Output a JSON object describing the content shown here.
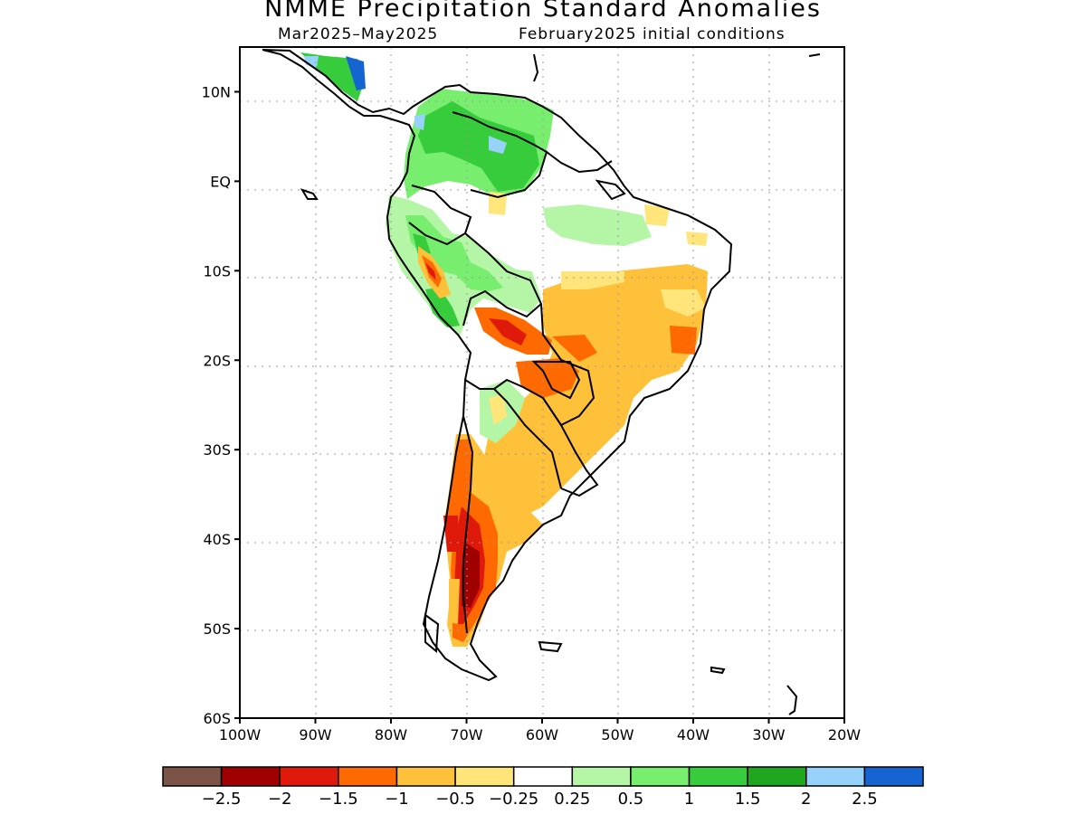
{
  "title": "NMME Precipitation Standard Anomalies",
  "subtitle_left": "Mar2025–May2025",
  "subtitle_right": "February2025 initial conditions",
  "axes": {
    "lon_labels": [
      "100W",
      "90W",
      "80W",
      "70W",
      "60W",
      "50W",
      "40W",
      "30W",
      "20W"
    ],
    "lat_labels": [
      "10N",
      "EQ",
      "10S",
      "20S",
      "30S",
      "40S",
      "50S",
      "60S"
    ],
    "lon_values": [
      -100,
      -90,
      -80,
      -70,
      -60,
      -50,
      -40,
      -30,
      -20
    ],
    "lat_values": [
      10,
      0,
      -10,
      -20,
      -30,
      -40,
      -50,
      -60
    ],
    "lon_range": [
      -100,
      -20
    ],
    "lat_range": [
      -60,
      15
    ]
  },
  "colorbar": {
    "colors": [
      "#7b5347",
      "#a10000",
      "#e01a0b",
      "#ff6a00",
      "#ffc03a",
      "#ffe57a",
      "#ffffff",
      "#b4f5a6",
      "#78ee6e",
      "#37cc3c",
      "#1ea61e",
      "#96d2fa",
      "#1464d2"
    ],
    "labels": [
      "−2.5",
      "−2",
      "−1.5",
      "−1",
      "−0.5",
      "−0.25",
      "0.25",
      "0.5",
      "1",
      "1.5",
      "2",
      "2.5"
    ]
  }
}
